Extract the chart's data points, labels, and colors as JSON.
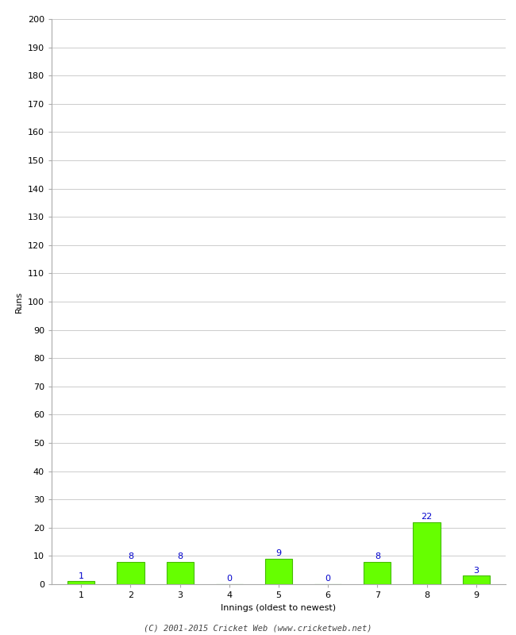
{
  "innings": [
    1,
    2,
    3,
    4,
    5,
    6,
    7,
    8,
    9
  ],
  "runs": [
    1,
    8,
    8,
    0,
    9,
    0,
    8,
    22,
    3
  ],
  "bar_color": "#66ff00",
  "bar_edge_color": "#44bb00",
  "xlabel": "Innings (oldest to newest)",
  "ylabel": "Runs",
  "ylim": [
    0,
    200
  ],
  "yticks": [
    0,
    10,
    20,
    30,
    40,
    50,
    60,
    70,
    80,
    90,
    100,
    110,
    120,
    130,
    140,
    150,
    160,
    170,
    180,
    190,
    200
  ],
  "label_color": "#0000cc",
  "label_fontsize": 8,
  "footer": "(C) 2001-2015 Cricket Web (www.cricketweb.net)",
  "background_color": "#ffffff",
  "grid_color": "#cccccc",
  "tick_fontsize": 8,
  "axis_label_fontsize": 8
}
